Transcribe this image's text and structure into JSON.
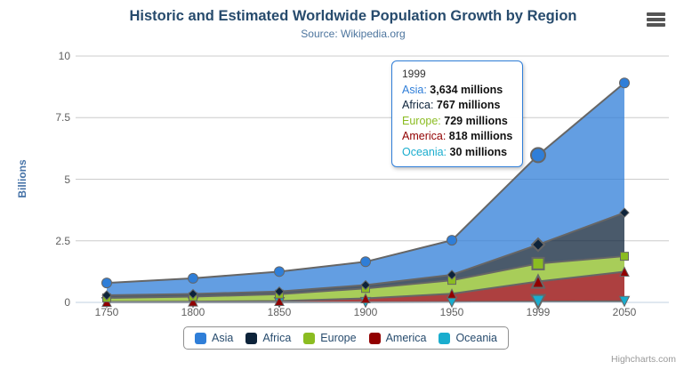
{
  "chart": {
    "title": "Historic and Estimated Worldwide Population Growth by Region",
    "subtitle": "Source: Wikipedia.org",
    "y_axis_title": "Billions",
    "credit": "Highcharts.com",
    "background_color": "#ffffff",
    "grid_line_color": "#cccccc",
    "axis_line_color": "#c0d0e0",
    "series_line_color": "#666666",
    "title_color": "#274b6d",
    "subtitle_color": "#4d759e",
    "y_axis_title_color": "#4572a7"
  },
  "chart_data": {
    "type": "area",
    "stacking": "normal",
    "title": "Historic and Estimated Worldwide Population Growth by Region",
    "subtitle": "Source: Wikipedia.org",
    "xlabel": "",
    "ylabel": "Billions",
    "values_unit": "millions",
    "categories": [
      "1750",
      "1800",
      "1850",
      "1900",
      "1950",
      "1999",
      "2050"
    ],
    "series": [
      {
        "name": "Asia",
        "color": "#2f7ed8",
        "marker": "circle",
        "values": [
          502,
          635,
          809,
          947,
          1402,
          3634,
          5268
        ]
      },
      {
        "name": "Africa",
        "color": "#0d233a",
        "marker": "diamond",
        "values": [
          106,
          107,
          111,
          133,
          221,
          767,
          1766
        ]
      },
      {
        "name": "Europe",
        "color": "#8bbc21",
        "marker": "square",
        "values": [
          163,
          203,
          276,
          408,
          547,
          729,
          628
        ]
      },
      {
        "name": "America",
        "color": "#910000",
        "marker": "triangle",
        "values": [
          18,
          31,
          54,
          156,
          339,
          818,
          1201
        ]
      },
      {
        "name": "Oceania",
        "color": "#1aadce",
        "marker": "triangle-down",
        "values": [
          2,
          2,
          2,
          6,
          13,
          30,
          46
        ]
      }
    ],
    "ylim": [
      0,
      10
    ],
    "yticks": [
      0,
      2.5,
      5,
      7.5,
      10
    ],
    "grid": true,
    "legend_position": "bottom",
    "hover_index": 5,
    "fill_opacity": 0.75
  },
  "tooltip": {
    "header": "1999",
    "rows": [
      {
        "name": "Asia",
        "color": "#2f7ed8",
        "value": "3,634 millions"
      },
      {
        "name": "Africa",
        "color": "#0d233a",
        "value": "767 millions"
      },
      {
        "name": "Europe",
        "color": "#8bbc21",
        "value": "729 millions"
      },
      {
        "name": "America",
        "color": "#910000",
        "value": "818 millions"
      },
      {
        "name": "Oceania",
        "color": "#1aadce",
        "value": "30 millions"
      }
    ]
  }
}
